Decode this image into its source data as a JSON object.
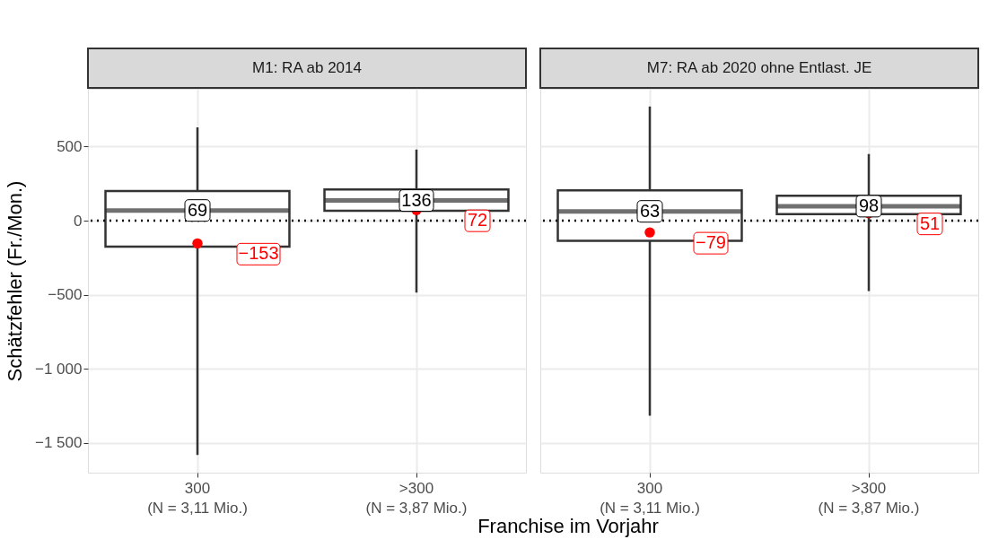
{
  "chart_data": [
    {
      "type": "box",
      "title": "M1: RA ab 2014",
      "ylabel": "Schätzfehler (Fr./Mon.)",
      "xlabel": "Franchise im Vorjahr",
      "categories": [
        "300\n(N = 3,11 Mio.)",
        ">300\n(N = 3,87 Mio.)"
      ],
      "boxes": [
        {
          "low": -1580,
          "q1": -175,
          "median": 69,
          "q3": 200,
          "high": 630,
          "mean": -153
        },
        {
          "low": -485,
          "q1": 67,
          "median": 136,
          "q3": 210,
          "high": 480,
          "mean": 72
        }
      ],
      "annotations": [
        {
          "text": "69",
          "x": "300\n(N = 3,11 Mio.)",
          "y": 69
        },
        {
          "text": "−153",
          "x": "300\n(N = 3,11 Mio.)",
          "y": -153
        },
        {
          "text": "136",
          "x": ">300\n(N = 3,87 Mio.)",
          "y": 136
        },
        {
          "text": "72",
          "x": ">300\n(N = 3,87 Mio.)",
          "y": 72
        }
      ],
      "ylim": [
        -1700,
        890
      ],
      "yticks": [
        {
          "value": -1500,
          "label": "−1 500"
        },
        {
          "value": -1000,
          "label": "−1 000"
        },
        {
          "value": -500,
          "label": "−500"
        },
        0,
        500
      ],
      "ref_lines": [
        {
          "axis": "y",
          "value": 0,
          "line_style": "dotted"
        }
      ],
      "grid": true
    },
    {
      "type": "box",
      "title": "M7: RA ab 2020 ohne Entlast. JE",
      "categories": [
        "300\n(N = 3,11 Mio.)",
        ">300\n(N = 3,87 Mio.)"
      ],
      "boxes": [
        {
          "low": -1315,
          "q1": -135,
          "median": 63,
          "q3": 205,
          "high": 770,
          "mean": -79
        },
        {
          "low": -475,
          "q1": 45,
          "median": 98,
          "q3": 168,
          "high": 450,
          "mean": 51
        }
      ],
      "annotations": [
        {
          "text": "63",
          "x": "300\n(N = 3,11 Mio.)",
          "y": 63
        },
        {
          "text": "−79",
          "x": "300\n(N = 3,11 Mio.)",
          "y": -79
        },
        {
          "text": "98",
          "x": ">300\n(N = 3,87 Mio.)",
          "y": 98
        },
        {
          "text": "51",
          "x": ">300\n(N = 3,87 Mio.)",
          "y": 51
        }
      ],
      "ylim": [
        -1700,
        890
      ],
      "yticks": [
        -1500,
        -1000,
        -500,
        0,
        500
      ],
      "ref_lines": [
        {
          "axis": "y",
          "value": 0,
          "line_style": "dotted"
        }
      ],
      "grid": true,
      "tick_labels": "x"
    }
  ]
}
